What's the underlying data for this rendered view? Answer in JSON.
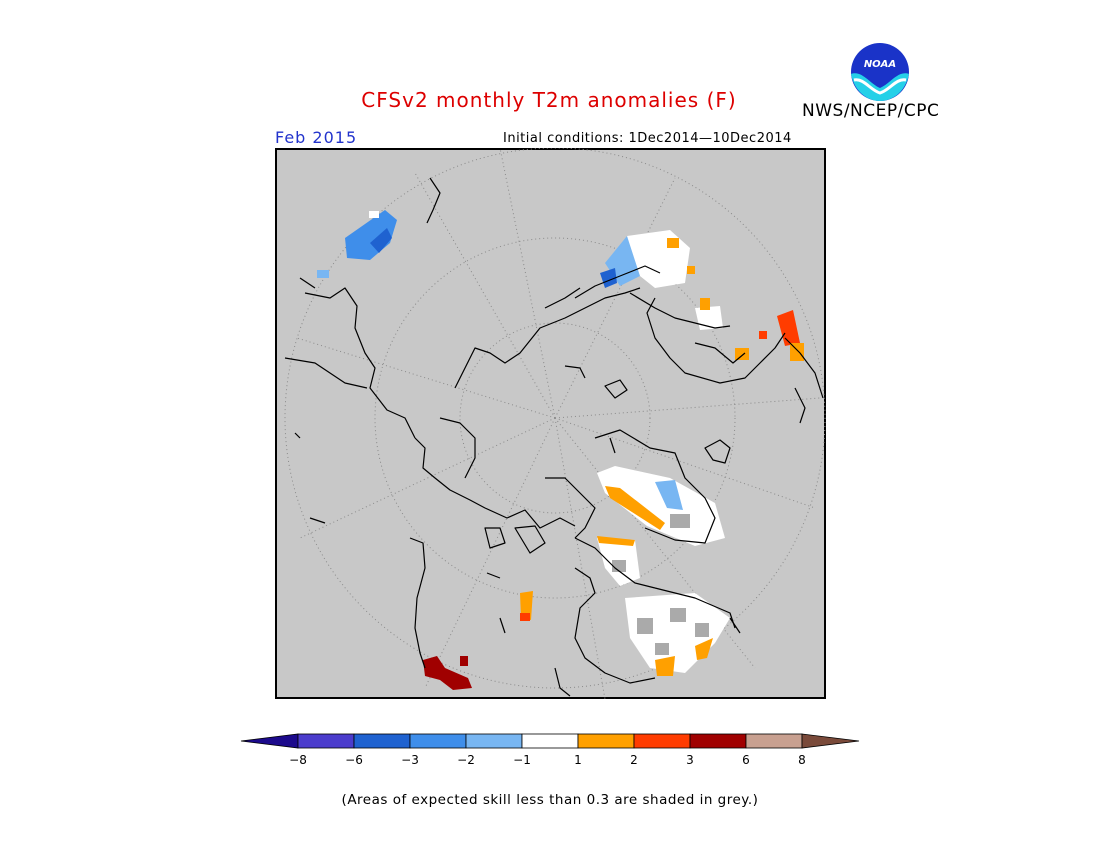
{
  "header": {
    "title": "CFSv2 monthly T2m anomalies (F)",
    "month": "Feb 2015",
    "initial_conditions": "Initial conditions: 1Dec2014—10Dec2014",
    "agency": "NWS/NCEP/CPC",
    "logo_text": "NOAA"
  },
  "colors": {
    "title": "#dd0000",
    "month": "#2233cc",
    "map_background": "#c8c8c8",
    "coastline": "#000000"
  },
  "colorbar": {
    "tick_labels": [
      "−8",
      "−6",
      "−3",
      "−2",
      "−1",
      "1",
      "2",
      "3",
      "6",
      "8"
    ],
    "bins": [
      {
        "color": "#1c0a8c"
      },
      {
        "color": "#4b3ccc"
      },
      {
        "color": "#1f62d0"
      },
      {
        "color": "#3f8eea"
      },
      {
        "color": "#78b6f2"
      },
      {
        "color": "#ffffff"
      },
      {
        "color": "#ffa000"
      },
      {
        "color": "#ff3c00"
      },
      {
        "color": "#a00000"
      },
      {
        "color": "#c8a090"
      },
      {
        "color": "#7a4a3a"
      }
    ]
  },
  "footnote": "(Areas of expected skill less than 0.3 are shaded in grey.)"
}
